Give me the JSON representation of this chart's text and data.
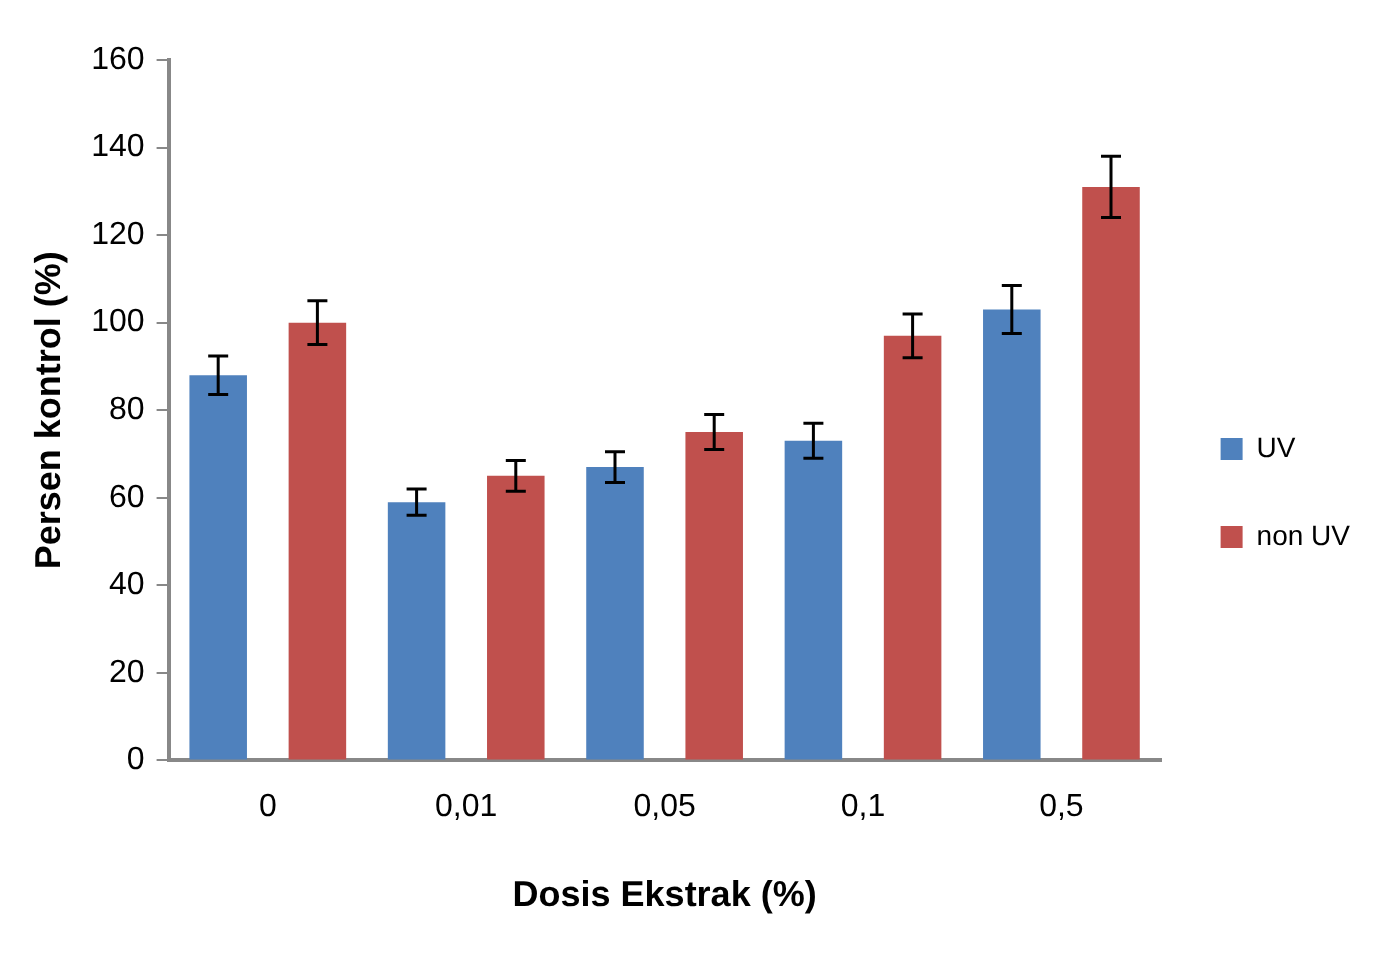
{
  "chart_data": {
    "type": "bar",
    "xlabel": "Dosis Ekstrak (%)",
    "ylabel": "Persen kontrol (%)",
    "categories": [
      "0",
      "0,01",
      "0,05",
      "0,1",
      "0,5"
    ],
    "series": [
      {
        "name": "UV",
        "color": "#4f81bd",
        "values": [
          88,
          59,
          67,
          73,
          103
        ],
        "errors": [
          4.4,
          3,
          3.5,
          4,
          5.5
        ]
      },
      {
        "name": "non UV",
        "color": "#c0504d",
        "values": [
          100,
          65,
          75,
          97,
          131
        ],
        "errors": [
          5,
          3.5,
          4,
          5,
          7
        ]
      }
    ],
    "ylim": [
      0,
      160
    ],
    "yticks": [
      0,
      20,
      40,
      60,
      80,
      100,
      120,
      140,
      160
    ],
    "grid": false,
    "legend": "right"
  }
}
